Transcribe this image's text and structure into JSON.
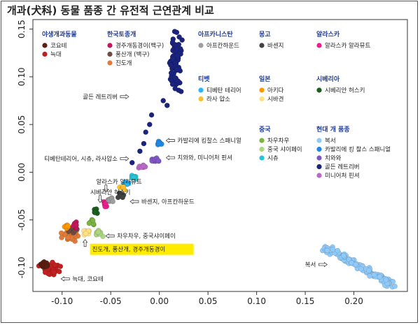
{
  "title": "개과(犬科) 동물 품종 간 유전적 근연관계 비교",
  "chart_data": {
    "type": "scatter",
    "xlim": [
      -0.13,
      0.255
    ],
    "ylim": [
      -0.125,
      0.16
    ],
    "x_ticks": [
      -0.1,
      -0.05,
      0.0,
      0.05,
      0.1,
      0.15,
      0.2
    ],
    "x_tick_labels": [
      "-0.10",
      "-0.05",
      "0.00",
      "0.05",
      "0.10",
      "0.15",
      "0.20"
    ],
    "y_ticks": [
      -0.1,
      -0.05,
      0.0,
      0.05,
      0.1,
      0.15
    ],
    "y_tick_labels": [
      "-0.10",
      "-0.05",
      "0.00",
      "0.05",
      "0.10",
      "0.15"
    ],
    "grid": false,
    "legend_groups": [
      {
        "title": "야생개과동물",
        "items": [
          {
            "label": "코요테",
            "color": "#5b1e12"
          },
          {
            "label": "늑대",
            "color": "#c0201f"
          }
        ]
      },
      {
        "title": "한국토종개",
        "items": [
          {
            "label": "경주개동경이(백구)",
            "color": "#c2185b"
          },
          {
            "label": "풍산개 (백구)",
            "color": "#6d4c41"
          },
          {
            "label": "진도개",
            "color": "#e07b39"
          }
        ]
      },
      {
        "title": "아프카니스탄",
        "items": [
          {
            "label": "아프칸하운드",
            "color": "#9e9e9e"
          }
        ]
      },
      {
        "title": "몽고",
        "items": [
          {
            "label": "바센지",
            "color": "#424242"
          }
        ]
      },
      {
        "title": "알라스카",
        "items": [
          {
            "label": "알라스카 알라뮤트",
            "color": "#e91e8c"
          }
        ]
      },
      {
        "title": "티벳",
        "items": [
          {
            "label": "티베탄 테리어",
            "color": "#29b6f6"
          },
          {
            "label": "라사 압소",
            "color": "#fbc02d"
          }
        ]
      },
      {
        "title": "일본",
        "items": [
          {
            "label": "아키다",
            "color": "#ff9800"
          },
          {
            "label": "시바견",
            "color": "#ffe082"
          }
        ]
      },
      {
        "title": "시베리아",
        "items": [
          {
            "label": "시베리안 허스키",
            "color": "#1b5e20"
          }
        ]
      },
      {
        "title": "중국",
        "items": [
          {
            "label": "차우차우",
            "color": "#7cb342"
          },
          {
            "label": "중국 샤이페이",
            "color": "#aed581"
          },
          {
            "label": "시츄",
            "color": "#26c6da"
          }
        ]
      },
      {
        "title": "현대 개 품종",
        "items": [
          {
            "label": "복서",
            "color": "#90caf9"
          },
          {
            "label": "카발리에 킹 찰스 스패니얼",
            "color": "#1e88e5"
          },
          {
            "label": "치와와",
            "color": "#7e57c2"
          },
          {
            "label": "골든 레트리버",
            "color": "#1a237e"
          },
          {
            "label": "미니어처 핀셔",
            "color": "#ba68c8"
          }
        ]
      }
    ],
    "series": [
      {
        "name": "늑대",
        "color": "#c0201f",
        "center": [
          -0.112,
          -0.101
        ],
        "spread": [
          0.009,
          0.006
        ],
        "n": 60
      },
      {
        "name": "코요테",
        "color": "#5b1e12",
        "center": [
          -0.118,
          -0.097
        ],
        "spread": [
          0.004,
          0.003
        ],
        "n": 10
      },
      {
        "name": "진도개",
        "color": "#e07b39",
        "center": [
          -0.092,
          -0.066
        ],
        "spread": [
          0.008,
          0.005
        ],
        "n": 30
      },
      {
        "name": "풍산개 (백구)",
        "color": "#6d4c41",
        "center": [
          -0.088,
          -0.06
        ],
        "spread": [
          0.004,
          0.004
        ],
        "n": 10
      },
      {
        "name": "경주개동경이(백구)",
        "color": "#c2185b",
        "center": [
          -0.087,
          -0.056
        ],
        "spread": [
          0.004,
          0.003
        ],
        "n": 8
      },
      {
        "name": "아키다",
        "color": "#ff9800",
        "center": [
          -0.095,
          -0.057
        ],
        "spread": [
          0.004,
          0.003
        ],
        "n": 8
      },
      {
        "name": "시바견",
        "color": "#ffe082",
        "center": [
          -0.075,
          -0.062
        ],
        "spread": [
          0.004,
          0.003
        ],
        "n": 8
      },
      {
        "name": "차우차우",
        "color": "#7cb342",
        "center": [
          -0.07,
          -0.053
        ],
        "spread": [
          0.004,
          0.003
        ],
        "n": 8
      },
      {
        "name": "중국 샤이페이",
        "color": "#aed581",
        "center": [
          -0.062,
          -0.064
        ],
        "spread": [
          0.005,
          0.003
        ],
        "n": 10
      },
      {
        "name": "시베리안 허스키",
        "color": "#1b5e20",
        "center": [
          -0.064,
          -0.041
        ],
        "spread": [
          0.003,
          0.003
        ],
        "n": 8
      },
      {
        "name": "알라스카 알라뮤트",
        "color": "#e91e8c",
        "center": [
          -0.055,
          -0.034
        ],
        "spread": [
          0.003,
          0.003
        ],
        "n": 8
      },
      {
        "name": "아프칸하운드",
        "color": "#9e9e9e",
        "center": [
          -0.05,
          -0.03
        ],
        "spread": [
          0.004,
          0.003
        ],
        "n": 8
      },
      {
        "name": "바센지",
        "color": "#424242",
        "center": [
          -0.04,
          -0.024
        ],
        "spread": [
          0.003,
          0.003
        ],
        "n": 8
      },
      {
        "name": "티베탄 테리어",
        "color": "#29b6f6",
        "center": [
          -0.033,
          -0.012
        ],
        "spread": [
          0.003,
          0.002
        ],
        "n": 8
      },
      {
        "name": "라사 압소",
        "color": "#fbc02d",
        "center": [
          -0.037,
          -0.016
        ],
        "spread": [
          0.003,
          0.002
        ],
        "n": 6
      },
      {
        "name": "시츄",
        "color": "#26c6da",
        "center": [
          -0.026,
          -0.006
        ],
        "spread": [
          0.003,
          0.002
        ],
        "n": 8
      },
      {
        "name": "미니어처 핀셔",
        "color": "#ba68c8",
        "center": [
          -0.018,
          0.006
        ],
        "spread": [
          0.004,
          0.002
        ],
        "n": 8
      },
      {
        "name": "치와와",
        "color": "#7e57c2",
        "center": [
          -0.004,
          0.013
        ],
        "spread": [
          0.005,
          0.002
        ],
        "n": 12
      },
      {
        "name": "카발리에 킹 찰스 스패니얼",
        "color": "#1e88e5",
        "center": [
          0.0,
          0.03
        ],
        "spread": [
          0.003,
          0.002
        ],
        "n": 10
      },
      {
        "name": "골든 레트리버",
        "color": "#1a237e",
        "center": [
          0.016,
          0.115
        ],
        "spread": [
          0.006,
          0.03
        ],
        "n": 80
      },
      {
        "name": "골든 레트리버",
        "color": "#1a237e",
        "points": [
          [
            0.004,
            0.075
          ],
          [
            -0.01,
            0.05
          ],
          [
            -0.014,
            0.042
          ],
          [
            -0.008,
            0.06
          ],
          [
            -0.016,
            0.03
          ],
          [
            -0.02,
            0.022
          ],
          [
            -0.028,
            0.01
          ],
          [
            0.008,
            0.07
          ]
        ]
      },
      {
        "name": "복서",
        "color": "#90caf9",
        "line": [
          [
            0.168,
            -0.078
          ],
          [
            0.24,
            -0.118
          ]
        ],
        "spread": 0.004,
        "n": 140
      }
    ],
    "annotations": [
      {
        "text": "골든 레트리버",
        "x": -0.043,
        "y": 0.077,
        "arrow": "right"
      },
      {
        "text": "카발리에 킹찰스 스패니얼",
        "x": 0.007,
        "y": 0.031,
        "arrow": "left"
      },
      {
        "text": "치와와, 미니어처 핀셔",
        "x": 0.007,
        "y": 0.013,
        "arrow": "left"
      },
      {
        "text": "티베탄테리어, 시츄, 라사압소",
        "x": -0.043,
        "y": 0.012,
        "arrow": "right"
      },
      {
        "text": "알라스카 알라뮤트",
        "x": -0.065,
        "y": -0.012,
        "arrow": "down"
      },
      {
        "text": "시베리안 허스키",
        "x": -0.071,
        "y": -0.023,
        "arrow": "down"
      },
      {
        "text": "바센지, 아프칸하운드",
        "x": -0.03,
        "y": -0.033,
        "arrow": "left"
      },
      {
        "text": "차우차우, 중국샤이페이",
        "x": -0.055,
        "y": -0.069,
        "arrow": "left"
      },
      {
        "text": "진도개, 풍산개, 경주개동경이",
        "x": -0.072,
        "y": -0.083,
        "arrow": "up",
        "highlight": true
      },
      {
        "text": "늑대, 코요테",
        "x": -0.101,
        "y": -0.114,
        "arrow": "left"
      },
      {
        "text": "복서",
        "x": 0.161,
        "y": -0.099,
        "arrow": "right"
      }
    ]
  }
}
